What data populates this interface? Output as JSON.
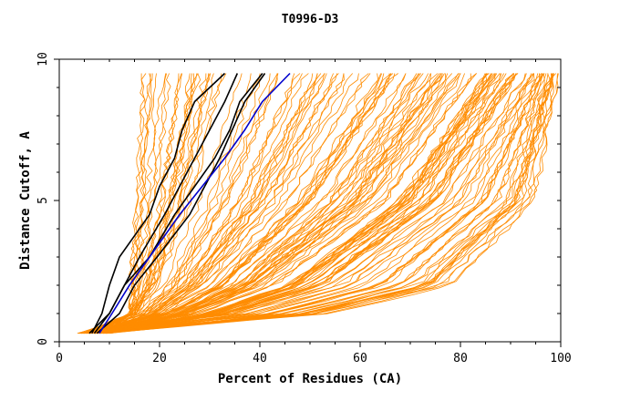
{
  "chart_data": {
    "type": "line",
    "title": "T0996-D3",
    "xlabel": "Percent of Residues (CA)",
    "ylabel": "Distance Cutoff, A",
    "xlim": [
      0,
      100
    ],
    "ylim": [
      0,
      10
    ],
    "x_ticks": [
      "0",
      "20",
      "40",
      "60",
      "80",
      "100"
    ],
    "y_ticks": [
      "0",
      "5",
      "10"
    ],
    "grid": false,
    "legend": "none",
    "colors": {
      "background_models": "#ff8c00",
      "highlight": "#000000",
      "best": "#0000cc"
    },
    "background_curves": [
      {
        "x_at_y1": 14,
        "x_at_y2": 14,
        "x_at_y5": 15,
        "x_at_y9p5": 16
      },
      {
        "x_at_y1": 15,
        "x_at_y2": 19,
        "x_at_y5": 25,
        "x_at_y9p5": 31
      },
      {
        "x_at_y1": 20,
        "x_at_y2": 29,
        "x_at_y5": 44,
        "x_at_y9p5": 60
      },
      {
        "x_at_y1": 26,
        "x_at_y2": 40,
        "x_at_y5": 62,
        "x_at_y9p5": 80
      },
      {
        "x_at_y1": 35,
        "x_at_y2": 55,
        "x_at_y5": 78,
        "x_at_y9p5": 94
      },
      {
        "x_at_y1": 55,
        "x_at_y2": 80,
        "x_at_y5": 96,
        "x_at_y9p5": 100
      }
    ],
    "series": [
      {
        "color": "#000000",
        "x": [
          6.0,
          10.0,
          13.0,
          16.0,
          21.0,
          24.0,
          27.0,
          30.0,
          33.0,
          35.5
        ],
        "y": [
          0.3,
          1.0,
          2.0,
          3.0,
          4.5,
          5.5,
          6.5,
          7.5,
          8.5,
          9.5
        ]
      },
      {
        "color": "#000000",
        "x": [
          6.5,
          8.5,
          10.0,
          12.0,
          18.0,
          20.0,
          23.0,
          24.5,
          27.0,
          33.0
        ],
        "y": [
          0.3,
          1.0,
          2.0,
          3.0,
          4.5,
          5.5,
          6.5,
          7.5,
          8.5,
          9.5
        ]
      },
      {
        "color": "#000000",
        "x": [
          7.0,
          10.0,
          13.0,
          18.0,
          23.0,
          27.0,
          31.0,
          34.0,
          36.0,
          40.5
        ],
        "y": [
          0.3,
          1.0,
          2.0,
          3.0,
          4.5,
          5.5,
          6.5,
          7.5,
          8.5,
          9.5
        ]
      },
      {
        "color": "#000000",
        "x": [
          7.5,
          12.0,
          15.0,
          19.5,
          26.0,
          29.0,
          32.0,
          34.5,
          37.0,
          41.0
        ],
        "y": [
          0.3,
          1.0,
          2.0,
          3.0,
          4.5,
          5.5,
          6.5,
          7.5,
          8.5,
          9.5
        ]
      },
      {
        "color": "#0000cc",
        "x": [
          8.0,
          10.5,
          14.0,
          18.0,
          24.0,
          28.5,
          33.0,
          37.0,
          40.5,
          46.0
        ],
        "y": [
          0.3,
          1.0,
          2.0,
          3.0,
          4.5,
          5.5,
          6.5,
          7.5,
          8.5,
          9.5
        ]
      }
    ]
  }
}
